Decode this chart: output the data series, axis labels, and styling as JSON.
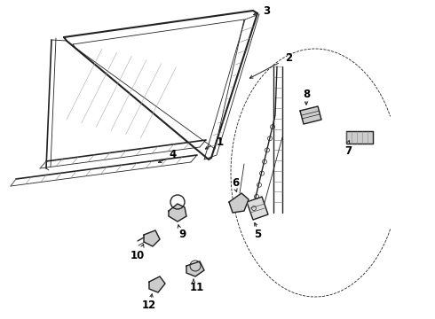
{
  "bg_color": "#ffffff",
  "line_color": "#222222",
  "label_color": "#000000",
  "label_fontsize": 8.5,
  "label_fontweight": "bold",
  "figsize": [
    4.9,
    3.6
  ],
  "dpi": 100
}
